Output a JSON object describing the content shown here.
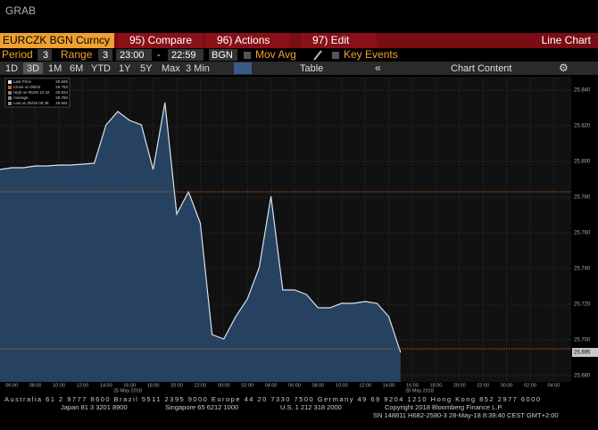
{
  "header": {
    "title": "GRAB"
  },
  "toolbar": {
    "security": "EURCZK BGN Curncy",
    "compare": "95) Compare",
    "actions": "96) Actions",
    "edit": "97) Edit",
    "view": "Line Chart",
    "period_label": "Period",
    "period_value": "3",
    "range_label": "Range",
    "range_value": "3",
    "range_start": "23:00",
    "range_sep": "-",
    "range_end": "22:59",
    "source": "BGN",
    "mov_avg": "Mov Avg",
    "key_events": "Key Events",
    "buttons": [
      "1D",
      "3D",
      "1M",
      "6M",
      "YTD",
      "1Y",
      "5Y",
      "Max"
    ],
    "interval": "3 Min",
    "table": "Table",
    "chart_content": "Chart Content"
  },
  "chart_data": {
    "type": "line",
    "categories": [
      null,
      "06:00",
      null,
      "08:00",
      null,
      "10:00",
      null,
      "12:00",
      null,
      "14:00",
      null,
      "16:00",
      null,
      "18:00",
      null,
      "20:00",
      null,
      "22:00",
      null,
      "00:00",
      null,
      "02:00",
      null,
      "04:00",
      null,
      "06:00",
      null,
      "08:00",
      null,
      "10:00",
      null,
      "12:00",
      null,
      "14:00",
      null,
      "16:00",
      null,
      "18:00",
      null,
      "20:00",
      null,
      "22:00",
      null,
      "00:00",
      null,
      "02:00",
      null,
      "04:00",
      null
    ],
    "series": [
      {
        "name": "Last Price",
        "color": "#d8e2ee",
        "values": [
          25.7955,
          25.7965,
          25.7965,
          25.7975,
          25.7975,
          25.798,
          25.798,
          25.7985,
          25.799,
          25.8205,
          25.828,
          25.823,
          25.8205,
          25.7955,
          25.833,
          25.7705,
          25.783,
          25.7655,
          25.703,
          25.7005,
          25.713,
          25.723,
          25.7405,
          25.7805,
          25.728,
          25.728,
          25.7255,
          25.718,
          25.718,
          25.7205,
          25.7205,
          25.7215,
          25.7205,
          25.713,
          25.693,
          null,
          null,
          null,
          null,
          null,
          null,
          null,
          null,
          null,
          null,
          null,
          null,
          null,
          null
        ]
      }
    ],
    "ylim": [
      25.6765,
      25.8465
    ],
    "yticks": [
      {
        "value": 25.68,
        "label": "25.680"
      },
      {
        "value": 25.7,
        "label": "25.700"
      },
      {
        "value": 25.72,
        "label": "25.720"
      },
      {
        "value": 25.74,
        "label": "25.740"
      },
      {
        "value": 25.76,
        "label": "25.760"
      },
      {
        "value": 25.78,
        "label": "25.780"
      },
      {
        "value": 25.8,
        "label": "25.800"
      },
      {
        "value": 25.82,
        "label": "25.820"
      },
      {
        "value": 25.84,
        "label": "25.840"
      }
    ],
    "grid": true,
    "reference_lines": [
      {
        "value": 25.783,
        "color": "#c8641e"
      },
      {
        "value": 25.695,
        "color": "#c8641e"
      }
    ],
    "last_value_label": "25.695",
    "legend_stats": [
      {
        "label": "Last Price",
        "value": "25.695"
      },
      {
        "label": "Close on 05/24",
        "value": "25.783"
      },
      {
        "label": "High on 05/25 12:42",
        "value": "25.834"
      },
      {
        "label": "Average",
        "value": "25.760"
      },
      {
        "label": "Low on 05/28 08:38",
        "value": "25.691"
      }
    ],
    "date_labels": [
      "25 May 2018",
      "28 May 2018"
    ]
  },
  "footer": {
    "line1": "Australia 61 2 9777 8600 Brazil 5511 2395 9000 Europe 44 20 7330 7500 Germany 49 69 9204 1210 Hong Kong 852 2977 6000",
    "line2": "Japan 81 3 3201 8900",
    "line2b": "Singapore 65 6212 1000",
    "line2c": "U.S. 1 212 318 2000",
    "line2d": "Copyright 2018 Bloomberg Finance L.P.",
    "line3": "SN 148811 H682-2580-3 28-May-18  8:39:40 CEST GMT+2:00"
  }
}
